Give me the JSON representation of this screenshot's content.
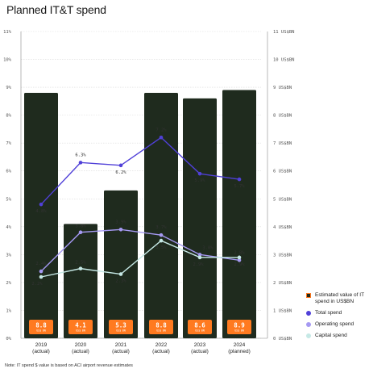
{
  "title": "Planned IT&T spend",
  "note": "Note: IT spend $ value is based on ACI airport revenue estimates",
  "colors": {
    "bar": "#1f2b1e",
    "badge": "#ff7a20",
    "total": "#5040d8",
    "operating": "#a599f2",
    "capital": "#c6e9e6",
    "grid": "#d9d9d9"
  },
  "legend": [
    {
      "label": "Estimated value of IT spend in US$BN",
      "color": "#1f2b1e",
      "shape": "rect"
    },
    {
      "label": "Total spend",
      "color": "#5040d8",
      "shape": "dot"
    },
    {
      "label": "Operating spend",
      "color": "#a599f2",
      "shape": "dot"
    },
    {
      "label": "Capital spend",
      "color": "#c6e9e6",
      "shape": "dot"
    }
  ],
  "chart_data": {
    "type": "bar+line",
    "title": "Planned IT&T spend",
    "categories": [
      "2019\n(actual)",
      "2020\n(actual)",
      "2021\n(actual)",
      "2022\n(actual)",
      "2023\n(actual)",
      "2024\n(planned)"
    ],
    "bar_series": {
      "name": "Estimated value of IT spend in US$BN",
      "values": [
        8.8,
        4.1,
        5.3,
        8.8,
        8.6,
        8.9
      ],
      "labels": [
        "8.8",
        "4.1",
        "5.3",
        "8.8",
        "8.6",
        "8.9"
      ],
      "unit_label": "US$ BN",
      "axis": "right"
    },
    "line_series": [
      {
        "name": "Total spend",
        "values": [
          4.8,
          6.3,
          6.2,
          7.2,
          5.9,
          5.7
        ],
        "labels": [
          "4.8%",
          "6.3%",
          "6.2%",
          "7.2%",
          "5.9%",
          "5.7%"
        ]
      },
      {
        "name": "Operating spend",
        "values": [
          2.4,
          3.8,
          3.9,
          3.7,
          3.0,
          2.8
        ],
        "labels": [
          "2.4%",
          "3.8%",
          "3.9%",
          "3.7%",
          "3.0%",
          "2.8%"
        ]
      },
      {
        "name": "Capital spend",
        "values": [
          2.2,
          2.5,
          2.3,
          3.5,
          2.9,
          2.9
        ],
        "labels": [
          "2.2%",
          "2.5%",
          "2.3%",
          "3.5%",
          "2.9%",
          "2.9%"
        ]
      }
    ],
    "y_left": {
      "ticks": [
        "0%",
        "1%",
        "2%",
        "3%",
        "4%",
        "5%",
        "6%",
        "7%",
        "8%",
        "9%",
        "10%",
        "11%"
      ],
      "range": [
        0,
        11
      ]
    },
    "y_right": {
      "ticks": [
        "0 US$BN",
        "1 US$BN",
        "2 US$BN",
        "3 US$BN",
        "4 US$BN",
        "5 US$BN",
        "6 US$BN",
        "7 US$BN",
        "8 US$BN",
        "9 US$BN",
        "10 US$BN",
        "11 US$BN"
      ],
      "range": [
        0,
        11
      ]
    },
    "grid": true,
    "legend_position": "bottom-right"
  }
}
